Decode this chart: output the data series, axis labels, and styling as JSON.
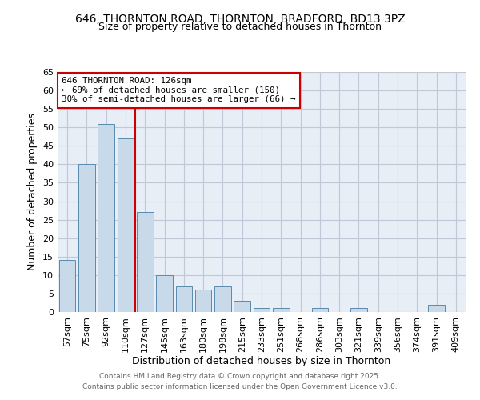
{
  "title1": "646, THORNTON ROAD, THORNTON, BRADFORD, BD13 3PZ",
  "title2": "Size of property relative to detached houses in Thornton",
  "xlabel": "Distribution of detached houses by size in Thornton",
  "ylabel": "Number of detached properties",
  "categories": [
    "57sqm",
    "75sqm",
    "92sqm",
    "110sqm",
    "127sqm",
    "145sqm",
    "163sqm",
    "180sqm",
    "198sqm",
    "215sqm",
    "233sqm",
    "251sqm",
    "268sqm",
    "286sqm",
    "303sqm",
    "321sqm",
    "339sqm",
    "356sqm",
    "374sqm",
    "391sqm",
    "409sqm"
  ],
  "values": [
    14,
    40,
    51,
    47,
    27,
    10,
    7,
    6,
    7,
    3,
    1,
    1,
    0,
    1,
    0,
    1,
    0,
    0,
    0,
    2,
    0
  ],
  "bar_color": "#c8d9ea",
  "bar_edge_color": "#5a8ab0",
  "vline_color": "#cc0000",
  "vline_pos": 3.5,
  "annotation_text": "646 THORNTON ROAD: 126sqm\n← 69% of detached houses are smaller (150)\n30% of semi-detached houses are larger (66) →",
  "annotation_box_color": "#ffffff",
  "annotation_box_edge": "#cc0000",
  "ylim": [
    0,
    65
  ],
  "yticks": [
    0,
    5,
    10,
    15,
    20,
    25,
    30,
    35,
    40,
    45,
    50,
    55,
    60,
    65
  ],
  "footer1": "Contains HM Land Registry data © Crown copyright and database right 2025.",
  "footer2": "Contains public sector information licensed under the Open Government Licence v3.0.",
  "bg_color": "#ffffff",
  "plot_bg_color": "#e8eef6",
  "grid_color": "#c0c8d8",
  "title_fontsize": 10,
  "subtitle_fontsize": 9,
  "axis_label_fontsize": 9,
  "tick_fontsize": 8,
  "bar_width": 0.85
}
